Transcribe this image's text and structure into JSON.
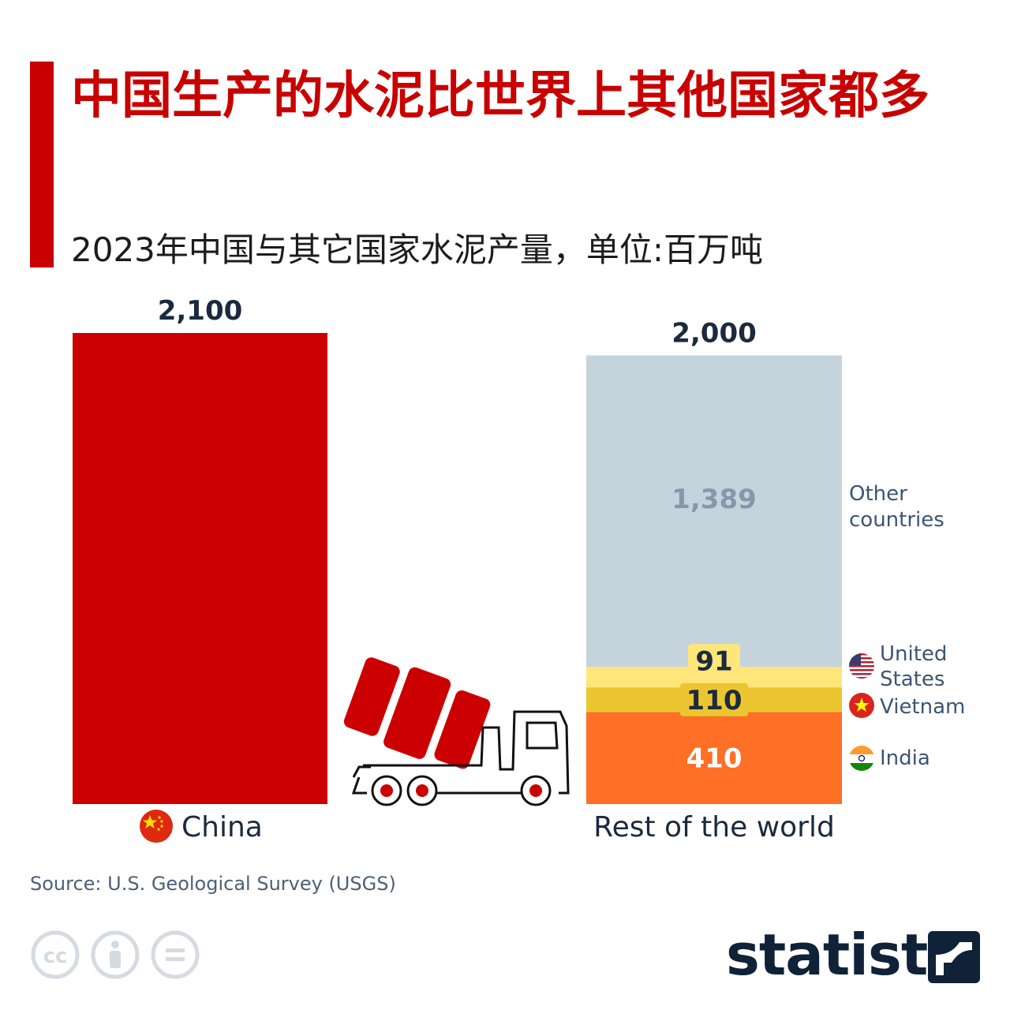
{
  "title": "中国生产的水泥比世界上其他国家都多",
  "subtitle": "2023年中国与其它国家水泥产量，单位:百万吨",
  "colors": {
    "accent": "#c80000",
    "china": "#cc0000",
    "other_countries": "#c5d4dc",
    "united_states": "#ffe67a",
    "vietnam": "#ecc631",
    "india": "#ff6f26",
    "text_dark": "#1b2a3d",
    "legend_text": "#3a5674"
  },
  "chart_data": {
    "type": "bar",
    "categories": [
      "China",
      "Rest of the world"
    ],
    "totals": [
      2100,
      2000
    ],
    "total_labels": [
      "2,100",
      "2,000"
    ],
    "china": {
      "value": 2100,
      "label": "2,100",
      "name": "China",
      "flag": "china-flag"
    },
    "rest_of_world": {
      "name": "Rest of the world",
      "total": 2000,
      "total_label": "2,000",
      "segments": [
        {
          "name": "India",
          "value": 410,
          "label": "410",
          "flag": "india-flag"
        },
        {
          "name": "Vietnam",
          "value": 110,
          "label": "110",
          "flag": "vietnam-flag"
        },
        {
          "name": "United States",
          "value": 91,
          "label": "91",
          "flag": "us-flag",
          "lines": [
            "United",
            "States"
          ]
        },
        {
          "name": "Other countries",
          "value": 1389,
          "label": "1,389",
          "lines": [
            "Other",
            "countries"
          ]
        }
      ]
    },
    "unit": "百万吨",
    "ylim": [
      0,
      2100
    ],
    "grid": false,
    "icons": [
      "cement-truck-icon"
    ]
  },
  "source": "Source: U.S. Geological Survey (USGS)",
  "license_icons": [
    "cc-icon",
    "attribution-icon",
    "no-derivatives-icon"
  ],
  "brand": "statista"
}
